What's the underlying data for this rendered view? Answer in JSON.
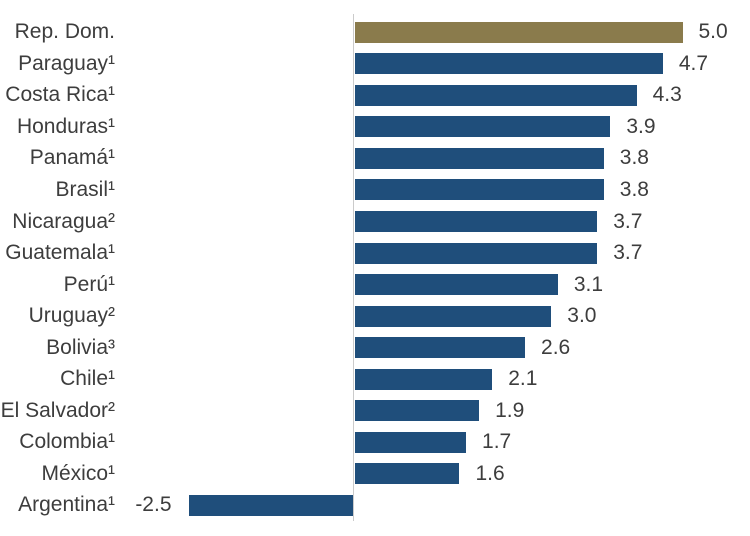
{
  "chart_data": {
    "type": "bar",
    "orientation": "horizontal",
    "title": "",
    "categories": [
      "Rep. Dom.",
      "Paraguay¹",
      "Costa Rica¹",
      "Honduras¹",
      "Panamá¹",
      "Brasil¹",
      "Nicaragua²",
      "Guatemala¹",
      "Perú¹",
      "Uruguay²",
      "Bolivia³",
      "Chile¹",
      "El Salvador²",
      "Colombia¹",
      "México¹",
      "Argentina¹"
    ],
    "values": [
      5.0,
      4.7,
      4.3,
      3.9,
      3.8,
      3.8,
      3.7,
      3.7,
      3.1,
      3.0,
      2.6,
      2.1,
      1.9,
      1.7,
      1.6,
      -2.5
    ],
    "value_labels": [
      "5.0",
      "4.7",
      "4.3",
      "3.9",
      "3.8",
      "3.8",
      "3.7",
      "3.7",
      "3.1",
      "3.0",
      "2.6",
      "2.1",
      "1.9",
      "1.7",
      "1.6",
      "-2.5"
    ],
    "highlight_index": 0,
    "data_labels_position": "outside-end",
    "grid": false,
    "legend": false,
    "xlim": [
      -2.5,
      5.0
    ],
    "colors": {
      "bar": "#1F4E7B",
      "highlight_bar": "#8A7B4C",
      "axis_line": "#CBCBCB",
      "label_text": "#3D3D3D"
    }
  }
}
